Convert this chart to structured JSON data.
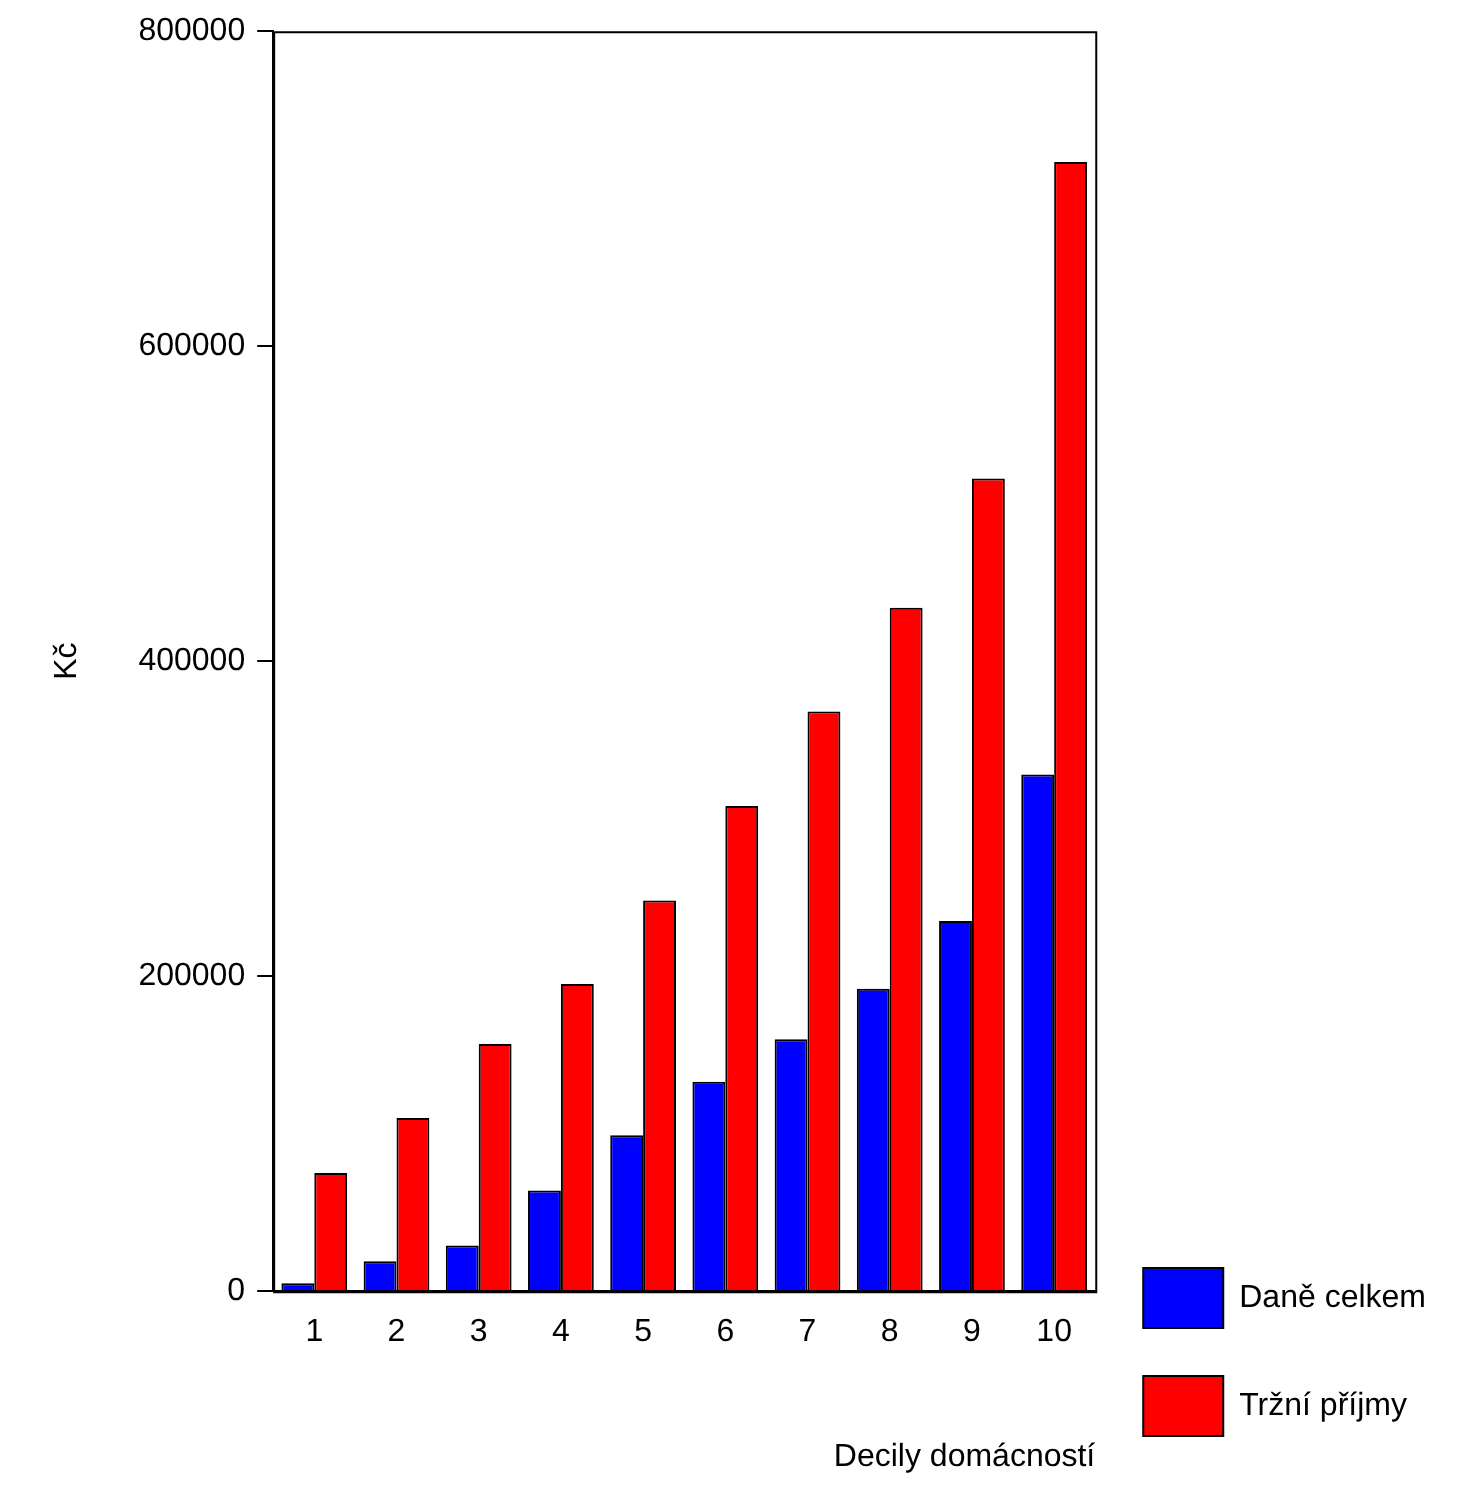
{
  "chart_data": {
    "type": "bar",
    "xlabel": "Decily domácností",
    "ylabel": "Kč",
    "categories": [
      "1",
      "2",
      "3",
      "4",
      "5",
      "6",
      "7",
      "8",
      "9",
      "10"
    ],
    "series": [
      {
        "name": "Daně celkem",
        "color": "#0000ff",
        "values": [
          5000,
          19000,
          29000,
          64000,
          99000,
          133000,
          160000,
          192000,
          235000,
          328000
        ]
      },
      {
        "name": "Tržní příjmy",
        "color": "#ff0000",
        "values": [
          75000,
          110000,
          157000,
          195000,
          248000,
          308000,
          368000,
          434000,
          516000,
          717000
        ]
      }
    ],
    "ylim": [
      0,
      800000
    ],
    "yticks": [
      0,
      200000,
      400000,
      600000,
      800000
    ],
    "grid": false,
    "legend": "bottom right"
  }
}
